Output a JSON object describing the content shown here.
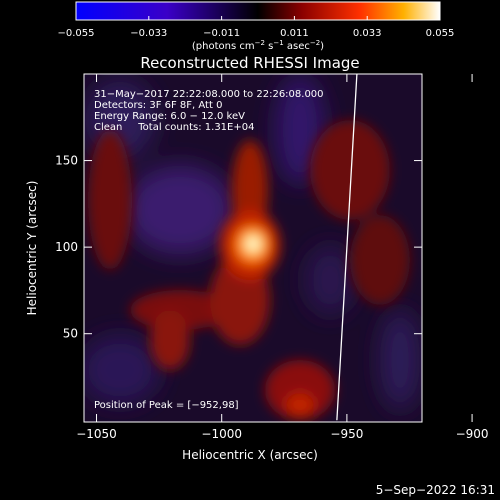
{
  "colorbar": {
    "ticks": [
      {
        "value": -0.055,
        "label": "−0.055"
      },
      {
        "value": -0.033,
        "label": "−0.033"
      },
      {
        "value": -0.011,
        "label": "−0.011"
      },
      {
        "value": 0.011,
        "label": "0.011"
      },
      {
        "value": 0.033,
        "label": "0.033"
      },
      {
        "value": 0.055,
        "label": "0.055"
      }
    ],
    "unit_main": "(photons cm",
    "unit_exp1": "−2",
    "unit_mid": " s",
    "unit_exp2": "−1",
    "unit_mid2": " asec",
    "unit_exp3": "−2",
    "unit_end": ")",
    "range": [
      -0.055,
      0.055
    ]
  },
  "title": "Reconstructed RHESSI Image",
  "info_lines": [
    "31−May−2017 22:22:08.000 to 22:26:08.000",
    "Detectors: 3F 6F 8F, Att 0",
    "Energy Range: 6.0 − 12.0 keV",
    "Clean     Total counts: 1.31E+04"
  ],
  "peak_label": "Position of Peak = [−952,98]",
  "timestamp": "5−Sep−2022 16:31",
  "chart_data": {
    "type": "heatmap",
    "title": "Reconstructed RHESSI Image",
    "xlabel": "Heliocentric X (arcsec)",
    "ylabel": "Heliocentric Y (arcsec)",
    "xlim": [
      -1055,
      -920
    ],
    "ylim": [
      -1,
      200
    ],
    "x_ticks": [
      {
        "value": -1050,
        "label": "−1050"
      },
      {
        "value": -1000,
        "label": "−1000"
      },
      {
        "value": -950,
        "label": "−950"
      },
      {
        "value": -900,
        "label": "−900"
      }
    ],
    "y_ticks": [
      {
        "value": 50,
        "label": "50"
      },
      {
        "value": 100,
        "label": "100"
      },
      {
        "value": 150,
        "label": "150"
      }
    ],
    "peak": {
      "x": -952,
      "y": 98
    },
    "limb_points": [
      [
        -946,
        200
      ],
      [
        -948,
        150
      ],
      [
        -950,
        100
      ],
      [
        -952,
        50
      ],
      [
        -954,
        0
      ]
    ]
  }
}
